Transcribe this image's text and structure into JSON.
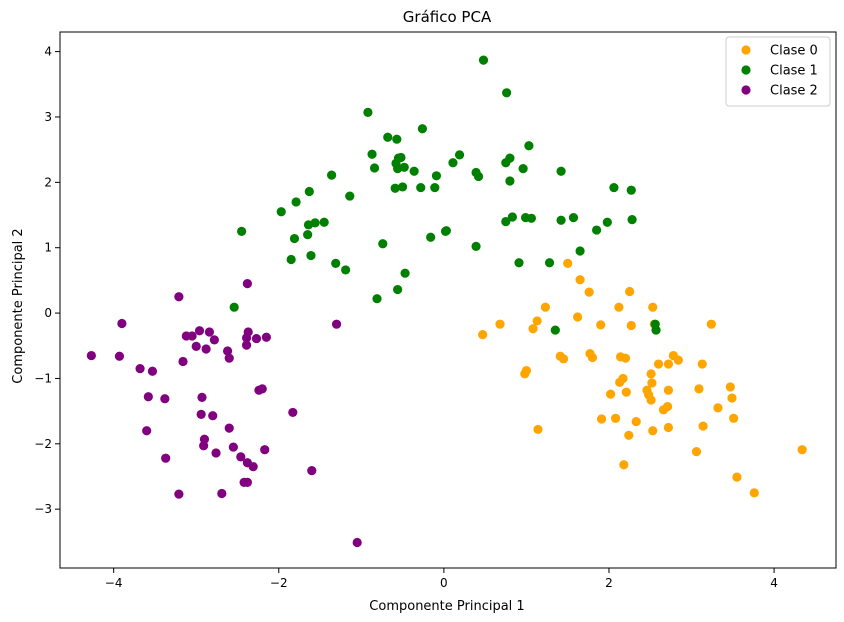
{
  "chart_data": {
    "type": "scatter",
    "title": "Gráfico PCA",
    "xlabel": "Componente Principal 1",
    "ylabel": "Componente Principal 2",
    "xlim": [
      -4.65,
      4.75
    ],
    "ylim": [
      -3.9,
      4.3
    ],
    "xticks": [
      -4,
      -2,
      0,
      2,
      4
    ],
    "xtick_labels": [
      "−4",
      "−2",
      "0",
      "2",
      "4"
    ],
    "yticks": [
      -3,
      -2,
      -1,
      0,
      1,
      2,
      3,
      4
    ],
    "ytick_labels": [
      "−3",
      "−2",
      "−1",
      "0",
      "1",
      "2",
      "3",
      "4"
    ],
    "grid": false,
    "legend_position": "top-right",
    "series": [
      {
        "name": "Clase 0",
        "color": "#ffa500",
        "points": [
          [
            1.5,
            0.76
          ],
          [
            1.65,
            0.51
          ],
          [
            1.76,
            0.32
          ],
          [
            2.25,
            0.33
          ],
          [
            2.12,
            0.09
          ],
          [
            2.53,
            0.09
          ],
          [
            1.23,
            0.09
          ],
          [
            1.13,
            -0.12
          ],
          [
            1.62,
            -0.06
          ],
          [
            0.68,
            -0.17
          ],
          [
            0.47,
            -0.33
          ],
          [
            1.08,
            -0.24
          ],
          [
            1.9,
            -0.18
          ],
          [
            2.27,
            -0.19
          ],
          [
            3.24,
            -0.17
          ],
          [
            2.55,
            -0.17
          ],
          [
            1.77,
            -0.62
          ],
          [
            1.8,
            -0.68
          ],
          [
            1.41,
            -0.66
          ],
          [
            1.45,
            -0.7
          ],
          [
            2.14,
            -0.67
          ],
          [
            2.2,
            -0.69
          ],
          [
            2.6,
            -0.78
          ],
          [
            2.78,
            -0.65
          ],
          [
            2.84,
            -0.72
          ],
          [
            2.72,
            -0.78
          ],
          [
            3.13,
            -0.78
          ],
          [
            1.0,
            -0.88
          ],
          [
            0.98,
            -0.93
          ],
          [
            2.51,
            -0.93
          ],
          [
            2.13,
            -1.06
          ],
          [
            2.17,
            -1.0
          ],
          [
            2.52,
            -1.07
          ],
          [
            2.46,
            -1.18
          ],
          [
            3.09,
            -1.16
          ],
          [
            3.47,
            -1.13
          ],
          [
            2.72,
            -1.18
          ],
          [
            2.21,
            -1.21
          ],
          [
            2.02,
            -1.24
          ],
          [
            2.48,
            -1.25
          ],
          [
            2.51,
            -1.33
          ],
          [
            3.49,
            -1.3
          ],
          [
            3.32,
            -1.45
          ],
          [
            2.71,
            -1.43
          ],
          [
            2.66,
            -1.48
          ],
          [
            1.91,
            -1.62
          ],
          [
            2.08,
            -1.61
          ],
          [
            3.51,
            -1.61
          ],
          [
            2.33,
            -1.66
          ],
          [
            3.14,
            -1.73
          ],
          [
            2.72,
            -1.75
          ],
          [
            2.53,
            -1.8
          ],
          [
            1.14,
            -1.78
          ],
          [
            2.24,
            -1.87
          ],
          [
            3.06,
            -2.12
          ],
          [
            4.34,
            -2.09
          ],
          [
            2.18,
            -2.32
          ],
          [
            3.55,
            -2.51
          ],
          [
            3.76,
            -2.75
          ]
        ]
      },
      {
        "name": "Clase 1",
        "color": "#008000",
        "points": [
          [
            0.48,
            3.87
          ],
          [
            0.76,
            3.37
          ],
          [
            -0.92,
            3.07
          ],
          [
            -0.26,
            2.82
          ],
          [
            -0.68,
            2.69
          ],
          [
            -0.57,
            2.66
          ],
          [
            1.03,
            2.56
          ],
          [
            0.19,
            2.42
          ],
          [
            -0.87,
            2.43
          ],
          [
            -0.55,
            2.37
          ],
          [
            -0.52,
            2.38
          ],
          [
            0.8,
            2.37
          ],
          [
            0.75,
            2.3
          ],
          [
            0.11,
            2.3
          ],
          [
            -0.58,
            2.29
          ],
          [
            -0.84,
            2.22
          ],
          [
            -0.56,
            2.21
          ],
          [
            -0.48,
            2.23
          ],
          [
            0.96,
            2.21
          ],
          [
            -0.36,
            2.17
          ],
          [
            1.42,
            2.17
          ],
          [
            0.39,
            2.15
          ],
          [
            -1.36,
            2.11
          ],
          [
            0.42,
            2.09
          ],
          [
            -0.09,
            2.1
          ],
          [
            0.8,
            2.02
          ],
          [
            -0.59,
            1.91
          ],
          [
            -0.5,
            1.93
          ],
          [
            -0.28,
            1.92
          ],
          [
            -0.11,
            1.92
          ],
          [
            2.06,
            1.92
          ],
          [
            2.27,
            1.88
          ],
          [
            -1.63,
            1.86
          ],
          [
            -1.14,
            1.79
          ],
          [
            -1.79,
            1.7
          ],
          [
            -1.97,
            1.55
          ],
          [
            0.83,
            1.47
          ],
          [
            0.99,
            1.46
          ],
          [
            1.06,
            1.45
          ],
          [
            1.57,
            1.46
          ],
          [
            1.42,
            1.42
          ],
          [
            0.75,
            1.4
          ],
          [
            1.98,
            1.39
          ],
          [
            2.28,
            1.43
          ],
          [
            -1.45,
            1.39
          ],
          [
            -1.56,
            1.38
          ],
          [
            -1.64,
            1.35
          ],
          [
            1.85,
            1.27
          ],
          [
            -2.45,
            1.25
          ],
          [
            -1.65,
            1.2
          ],
          [
            0.03,
            1.26
          ],
          [
            -1.81,
            1.14
          ],
          [
            -0.16,
            1.16
          ],
          [
            0.02,
            1.25
          ],
          [
            -0.74,
            1.06
          ],
          [
            0.39,
            1.02
          ],
          [
            1.65,
            0.95
          ],
          [
            -1.61,
            0.88
          ],
          [
            -1.85,
            0.82
          ],
          [
            -1.31,
            0.76
          ],
          [
            0.91,
            0.77
          ],
          [
            1.28,
            0.77
          ],
          [
            -1.19,
            0.66
          ],
          [
            -0.47,
            0.61
          ],
          [
            -0.56,
            0.36
          ],
          [
            -0.81,
            0.22
          ],
          [
            -2.54,
            0.09
          ],
          [
            2.56,
            -0.17
          ],
          [
            2.57,
            -0.26
          ],
          [
            1.35,
            -0.26
          ]
        ]
      },
      {
        "name": "Clase 2",
        "color": "#800080",
        "points": [
          [
            -2.38,
            0.45
          ],
          [
            -3.21,
            0.25
          ],
          [
            -3.9,
            -0.16
          ],
          [
            -1.3,
            -0.17
          ],
          [
            -2.96,
            -0.27
          ],
          [
            -2.84,
            -0.29
          ],
          [
            -2.37,
            -0.29
          ],
          [
            -3.12,
            -0.35
          ],
          [
            -3.05,
            -0.35
          ],
          [
            -2.78,
            -0.41
          ],
          [
            -2.39,
            -0.38
          ],
          [
            -2.27,
            -0.39
          ],
          [
            -2.15,
            -0.37
          ],
          [
            -2.39,
            -0.49
          ],
          [
            -3.0,
            -0.51
          ],
          [
            -2.88,
            -0.55
          ],
          [
            -2.62,
            -0.58
          ],
          [
            -2.6,
            -0.69
          ],
          [
            -4.27,
            -0.65
          ],
          [
            -3.93,
            -0.66
          ],
          [
            -3.16,
            -0.74
          ],
          [
            -3.68,
            -0.85
          ],
          [
            -3.53,
            -0.89
          ],
          [
            -2.24,
            -1.18
          ],
          [
            -2.2,
            -1.16
          ],
          [
            -3.58,
            -1.28
          ],
          [
            -3.38,
            -1.31
          ],
          [
            -2.93,
            -1.29
          ],
          [
            -1.83,
            -1.52
          ],
          [
            -2.94,
            -1.55
          ],
          [
            -2.8,
            -1.57
          ],
          [
            -2.6,
            -1.76
          ],
          [
            -3.6,
            -1.8
          ],
          [
            -2.9,
            -1.93
          ],
          [
            -2.91,
            -2.03
          ],
          [
            -2.55,
            -2.05
          ],
          [
            -2.76,
            -2.14
          ],
          [
            -2.17,
            -2.09
          ],
          [
            -3.37,
            -2.22
          ],
          [
            -2.46,
            -2.2
          ],
          [
            -2.38,
            -2.29
          ],
          [
            -2.31,
            -2.35
          ],
          [
            -1.6,
            -2.41
          ],
          [
            -2.42,
            -2.59
          ],
          [
            -2.38,
            -2.59
          ],
          [
            -3.21,
            -2.77
          ],
          [
            -2.69,
            -2.76
          ],
          [
            -1.05,
            -3.51
          ]
        ]
      }
    ]
  }
}
